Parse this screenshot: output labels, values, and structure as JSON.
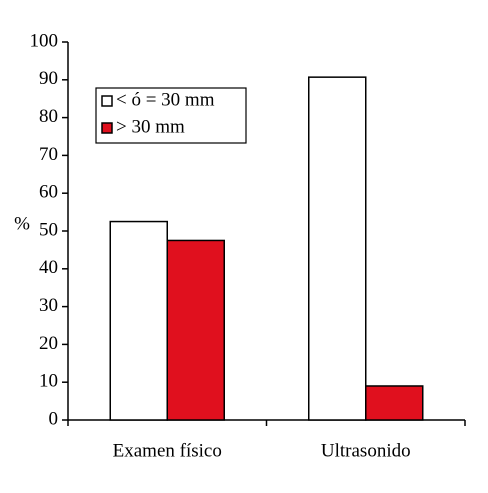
{
  "chart_data": {
    "type": "bar",
    "y_label": "%",
    "categories": [
      "Examen físico",
      "Ultrasonido"
    ],
    "series": [
      {
        "name": "< ó = 30 mm",
        "color": "#ffffff",
        "values": [
          52.5,
          90.7
        ]
      },
      {
        "name": "> 30 mm",
        "color": "#e0101e",
        "values": [
          47.5,
          9
        ]
      }
    ],
    "ylim": [
      0,
      100
    ],
    "yticks": [
      0,
      10,
      20,
      30,
      40,
      50,
      60,
      70,
      80,
      90,
      100
    ],
    "grid": false,
    "legend": "upper-left"
  }
}
